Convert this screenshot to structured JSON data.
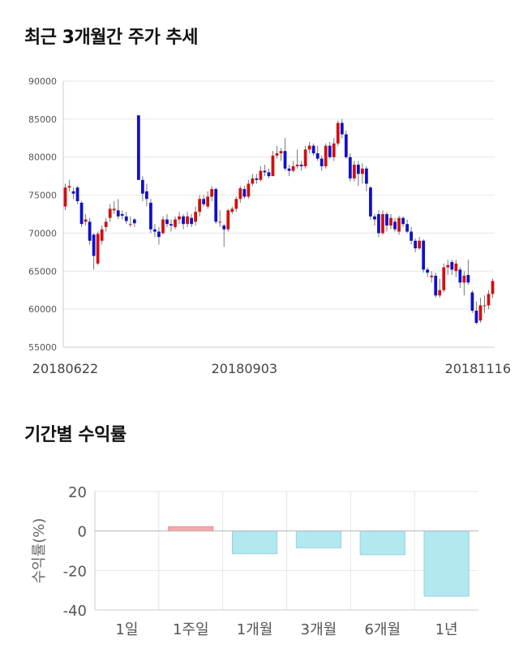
{
  "section1": {
    "title": "최근 3개월간 주가 추세"
  },
  "section2": {
    "title": "기간별 수익률"
  },
  "chart_data": [
    {
      "type": "candlestick",
      "title": "최근 3개월간 주가 추세",
      "ylim": [
        55000,
        90000
      ],
      "y_ticks": [
        90000,
        85000,
        80000,
        75000,
        70000,
        65000,
        60000,
        55000
      ],
      "x_tick_labels": [
        {
          "index": 0,
          "label": "20180622"
        },
        {
          "index": 44,
          "label": "20180903"
        },
        {
          "index": 88,
          "label": "20181116"
        }
      ],
      "grid": true,
      "up_color": "#d01010",
      "down_color": "#1010c8",
      "candles": [
        [
          73500,
          76000,
          76500,
          73000
        ],
        [
          76000,
          76200,
          77000,
          75500
        ],
        [
          75500,
          75200,
          76000,
          74500
        ],
        [
          76000,
          74200,
          76200,
          73800
        ],
        [
          74000,
          71200,
          74200,
          70800
        ],
        [
          71500,
          71800,
          72500,
          71000
        ],
        [
          71500,
          69000,
          72000,
          68500
        ],
        [
          69800,
          67000,
          70000,
          65200
        ],
        [
          66000,
          69900,
          70200,
          65800
        ],
        [
          69000,
          70500,
          71000,
          68500
        ],
        [
          70800,
          71500,
          72000,
          70200
        ],
        [
          72000,
          73200,
          73800,
          71500
        ],
        [
          73000,
          73200,
          74200,
          72500
        ],
        [
          73000,
          72200,
          74500,
          71800
        ],
        [
          72500,
          72300,
          73000,
          71800
        ],
        [
          72200,
          71600,
          72800,
          71200
        ],
        [
          71200,
          71200,
          72200,
          70800
        ],
        [
          71800,
          71300,
          72000,
          70800
        ],
        [
          85500,
          77000,
          85500,
          77000
        ],
        [
          77000,
          75200,
          77500,
          74200
        ],
        [
          75500,
          74500,
          76500,
          73500
        ],
        [
          74000,
          70500,
          74500,
          70000
        ],
        [
          70500,
          70200,
          71200,
          69500
        ],
        [
          70200,
          69500,
          70800,
          68500
        ],
        [
          70000,
          71800,
          72200,
          69800
        ],
        [
          71800,
          71200,
          72500,
          70800
        ],
        [
          71200,
          71000,
          71800,
          70200
        ],
        [
          70800,
          71800,
          72200,
          70500
        ],
        [
          71800,
          72200,
          72800,
          71200
        ],
        [
          72200,
          71200,
          72500,
          70500
        ],
        [
          71200,
          72200,
          72800,
          70800
        ],
        [
          72000,
          71200,
          72500,
          70800
        ],
        [
          71500,
          72800,
          73500,
          71000
        ],
        [
          72800,
          74500,
          75000,
          72200
        ],
        [
          74500,
          73800,
          75000,
          73500
        ],
        [
          73500,
          74800,
          75500,
          73200
        ],
        [
          74800,
          75800,
          76200,
          74200
        ],
        [
          75800,
          71500,
          76000,
          71200
        ],
        [
          71500,
          71500,
          73000,
          70800
        ],
        [
          71000,
          70500,
          71200,
          68200
        ],
        [
          70500,
          73000,
          73200,
          70200
        ],
        [
          72800,
          73200,
          73500,
          72500
        ],
        [
          73200,
          74500,
          74800,
          72800
        ],
        [
          74500,
          75900,
          76200,
          74000
        ],
        [
          75800,
          74800,
          76200,
          74500
        ],
        [
          74800,
          76500,
          77000,
          74500
        ],
        [
          76500,
          77200,
          77800,
          76200
        ],
        [
          77200,
          77000,
          77800,
          76500
        ],
        [
          77000,
          78200,
          78800,
          76800
        ],
        [
          78200,
          78000,
          79000,
          77500
        ],
        [
          78000,
          77500,
          78500,
          77200
        ],
        [
          77500,
          80200,
          80800,
          77500
        ],
        [
          80200,
          80500,
          81500,
          79800
        ],
        [
          80500,
          80800,
          81200,
          79500
        ],
        [
          80800,
          78500,
          82500,
          78200
        ],
        [
          78500,
          78200,
          79000,
          77500
        ],
        [
          78200,
          78800,
          79500,
          78000
        ],
        [
          78800,
          79000,
          81000,
          78500
        ],
        [
          79000,
          78800,
          79500,
          78200
        ],
        [
          78800,
          81000,
          81500,
          78500
        ],
        [
          81000,
          81500,
          82000,
          80500
        ],
        [
          81500,
          80500,
          81800,
          80200
        ],
        [
          80500,
          79800,
          81500,
          79500
        ],
        [
          79800,
          78800,
          80200,
          78200
        ],
        [
          78800,
          81500,
          81800,
          78500
        ],
        [
          81500,
          80000,
          82000,
          79800
        ],
        [
          80000,
          81800,
          82500,
          79500
        ],
        [
          81800,
          84500,
          84800,
          81500
        ],
        [
          84500,
          83000,
          85000,
          82500
        ],
        [
          83000,
          80000,
          83500,
          79800
        ],
        [
          80000,
          77200,
          80500,
          76800
        ],
        [
          77200,
          79000,
          79500,
          76800
        ],
        [
          79000,
          77800,
          79500,
          76200
        ],
        [
          77800,
          78500,
          79200,
          76500
        ],
        [
          78500,
          76500,
          78800,
          75500
        ],
        [
          76000,
          72200,
          76200,
          71800
        ],
        [
          72200,
          71800,
          72500,
          71000
        ],
        [
          72500,
          70000,
          73000,
          69500
        ],
        [
          70000,
          72500,
          73000,
          69800
        ],
        [
          72500,
          71000,
          72800,
          70200
        ],
        [
          71000,
          72000,
          72500,
          70500
        ],
        [
          71500,
          70500,
          72000,
          70200
        ],
        [
          70200,
          72000,
          72300,
          69800
        ],
        [
          72000,
          71200,
          72200,
          70800
        ],
        [
          71200,
          70200,
          71800,
          70000
        ],
        [
          70200,
          69000,
          70800,
          68500
        ],
        [
          69000,
          68000,
          69300,
          67500
        ],
        [
          68000,
          69000,
          69500,
          67800
        ],
        [
          69000,
          65200,
          69200,
          64800
        ],
        [
          65200,
          64800,
          65500,
          64200
        ],
        [
          64200,
          64400,
          65000,
          63500
        ],
        [
          64400,
          61800,
          64800,
          61500
        ],
        [
          61800,
          62500,
          64000,
          61500
        ],
        [
          62500,
          65500,
          66000,
          62200
        ],
        [
          65500,
          65800,
          66500,
          64500
        ],
        [
          66200,
          65200,
          66500,
          64500
        ],
        [
          65000,
          66000,
          66500,
          64200
        ],
        [
          65200,
          63500,
          65500,
          62800
        ],
        [
          63500,
          64400,
          65000,
          61800
        ],
        [
          64500,
          63500,
          66500,
          63200
        ],
        [
          62200,
          59800,
          62500,
          59500
        ],
        [
          59800,
          58200,
          61000,
          58000
        ],
        [
          58500,
          60500,
          61500,
          58200
        ],
        [
          60500,
          60500,
          61800,
          59500
        ],
        [
          60500,
          62000,
          62500,
          60000
        ],
        [
          62000,
          63700,
          64000,
          61500
        ]
      ]
    },
    {
      "type": "bar",
      "title": "기간별 수익률",
      "categories": [
        "1일",
        "1주일",
        "1개월",
        "3개월",
        "6개월",
        "1년"
      ],
      "values": [
        0,
        2.2,
        -11.5,
        -8.5,
        -12,
        -33
      ],
      "ylabel": "수익률(%)",
      "ylim": [
        -40,
        20
      ],
      "y_ticks": [
        20,
        0,
        -20,
        -40
      ],
      "grid": true,
      "positive_color": "#f4a8ac",
      "negative_color": "#b2e9f1"
    }
  ]
}
